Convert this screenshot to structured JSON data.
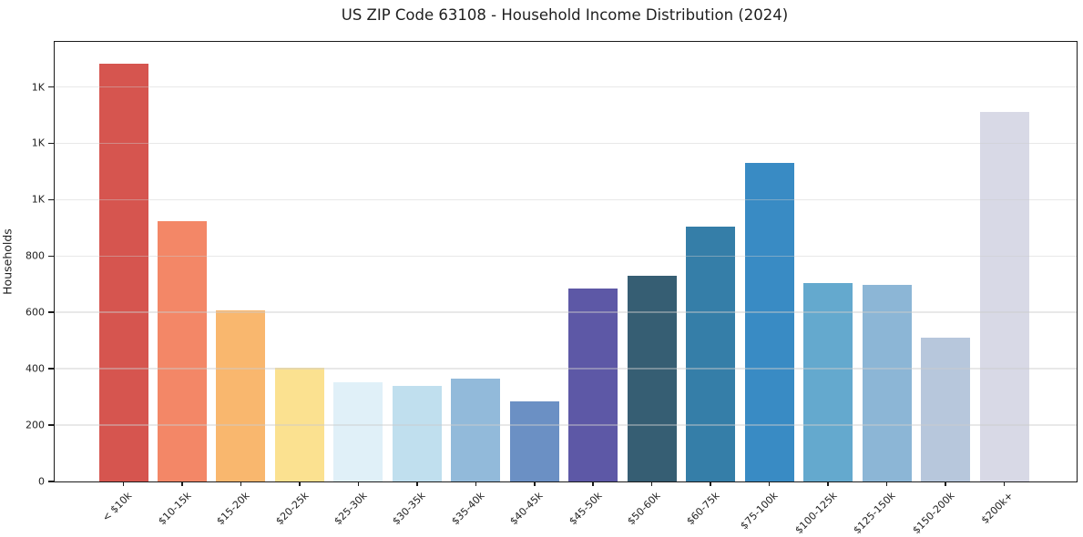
{
  "page": {
    "background": "#ffffff",
    "axis_color": "#1a1a1a",
    "text_color": "#1f1f1f"
  },
  "chart_data": {
    "type": "bar",
    "title": "US ZIP Code 63108 - Household Income Distribution (2024)",
    "xlabel": "",
    "ylabel": "Households",
    "categories": [
      "< $10k",
      "$10-15k",
      "$15-20k",
      "$20-25k",
      "$25-30k",
      "$30-35k",
      "$35-40k",
      "$40-45k",
      "$45-50k",
      "$50-60k",
      "$60-75k",
      "$75-100k",
      "$100-125k",
      "$125-150k",
      "$150-200k",
      "$200k+"
    ],
    "values": [
      1483,
      925,
      608,
      404,
      352,
      338,
      366,
      285,
      685,
      730,
      903,
      1131,
      704,
      697,
      510,
      1312
    ],
    "bar_colors": [
      "#d6554f",
      "#f38767",
      "#f9b76e",
      "#fbe190",
      "#e0f0f8",
      "#c0dfee",
      "#92bada",
      "#6b90c4",
      "#5d58a6",
      "#365e73",
      "#357ea8",
      "#398bc4",
      "#64a9ce",
      "#8cb6d6",
      "#b7c7dc",
      "#d8d9e6"
    ],
    "ylim": [
      0,
      1560
    ],
    "yticks": [
      {
        "value": 0,
        "label": "0"
      },
      {
        "value": 200,
        "label": "200"
      },
      {
        "value": 400,
        "label": "400"
      },
      {
        "value": 600,
        "label": "600"
      },
      {
        "value": 800,
        "label": "800"
      },
      {
        "value": 1000,
        "label": "1K"
      },
      {
        "value": 1200,
        "label": "1K"
      },
      {
        "value": 1400,
        "label": "1K"
      }
    ],
    "grid": "y",
    "grid_over_bars": true,
    "grid_color": "rgba(205,205,205,0.45)",
    "legend": "none",
    "x_label_rotation_deg": 45
  }
}
